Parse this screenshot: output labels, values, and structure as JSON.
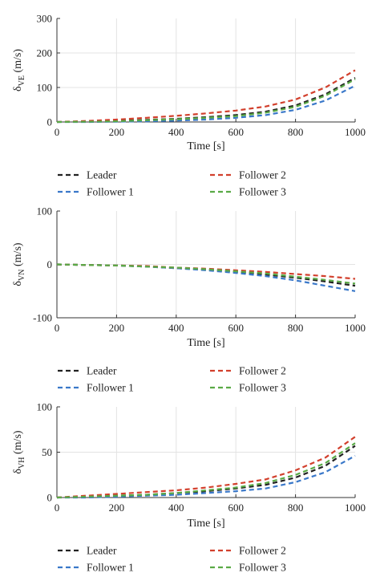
{
  "chart_data": [
    {
      "type": "line",
      "ylabel": {
        "main": "δ",
        "sub": "VE",
        "unit": "(m/s)"
      },
      "xlabel": "Time [s]",
      "xlim": [
        0,
        1000
      ],
      "ylim": [
        0,
        300
      ],
      "xticks": [
        "0",
        "200",
        "400",
        "600",
        "800",
        "1000"
      ],
      "yticks": [
        "0",
        "100",
        "200",
        "300"
      ],
      "grid": true,
      "legend_placement": "bottom",
      "x": [
        0,
        100,
        200,
        300,
        400,
        500,
        600,
        700,
        800,
        900,
        1000
      ],
      "series": [
        {
          "name": "Leader",
          "color": "#222222",
          "values": [
            0,
            1,
            3,
            6,
            9,
            14,
            20,
            30,
            48,
            80,
            128
          ]
        },
        {
          "name": "Follower 1",
          "color": "#3a78c9",
          "values": [
            0,
            0,
            1,
            2,
            4,
            7,
            12,
            20,
            35,
            62,
            105
          ]
        },
        {
          "name": "Follower 2",
          "color": "#d2402d",
          "values": [
            0,
            3,
            7,
            12,
            18,
            25,
            33,
            45,
            65,
            100,
            150
          ]
        },
        {
          "name": "Follower 3",
          "color": "#5aaa46",
          "values": [
            0,
            1,
            2,
            5,
            8,
            12,
            17,
            27,
            44,
            76,
            124
          ]
        }
      ]
    },
    {
      "type": "line",
      "ylabel": {
        "main": "δ",
        "sub": "VN",
        "unit": "(m/s)"
      },
      "xlabel": "Time [s]",
      "xlim": [
        0,
        1000
      ],
      "ylim": [
        -100,
        100
      ],
      "xticks": [
        "0",
        "200",
        "400",
        "600",
        "800",
        "1000"
      ],
      "yticks": [
        "-100",
        "0",
        "100"
      ],
      "grid": true,
      "legend_placement": "bottom",
      "x": [
        0,
        100,
        200,
        300,
        400,
        500,
        600,
        700,
        800,
        900,
        1000
      ],
      "series": [
        {
          "name": "Leader",
          "color": "#222222",
          "values": [
            0,
            -1,
            -2,
            -4,
            -7,
            -10,
            -14,
            -19,
            -25,
            -32,
            -40
          ]
        },
        {
          "name": "Follower 1",
          "color": "#3a78c9",
          "values": [
            0,
            -1,
            -2,
            -4,
            -7,
            -11,
            -16,
            -22,
            -30,
            -40,
            -50
          ]
        },
        {
          "name": "Follower 2",
          "color": "#d2402d",
          "values": [
            0,
            -1,
            -2,
            -3,
            -6,
            -8,
            -11,
            -14,
            -18,
            -22,
            -27
          ]
        },
        {
          "name": "Follower 3",
          "color": "#5aaa46",
          "values": [
            0,
            -1,
            -2,
            -4,
            -6,
            -9,
            -13,
            -17,
            -23,
            -29,
            -36
          ]
        }
      ]
    },
    {
      "type": "line",
      "ylabel": {
        "main": "δ",
        "sub": "VH",
        "unit": "(m/s)"
      },
      "xlabel": "Time [s]",
      "xlim": [
        0,
        1000
      ],
      "ylim": [
        0,
        100
      ],
      "xticks": [
        "0",
        "200",
        "400",
        "600",
        "800",
        "1000"
      ],
      "yticks": [
        "0",
        "50",
        "100"
      ],
      "grid": true,
      "legend_placement": "bottom",
      "x": [
        0,
        100,
        200,
        300,
        400,
        500,
        600,
        700,
        800,
        900,
        1000
      ],
      "series": [
        {
          "name": "Leader",
          "color": "#222222",
          "values": [
            0,
            1,
            2,
            3,
            5,
            7,
            10,
            14,
            22,
            35,
            57
          ]
        },
        {
          "name": "Follower 1",
          "color": "#3a78c9",
          "values": [
            0,
            0,
            1,
            2,
            3,
            5,
            7,
            10,
            17,
            28,
            46
          ]
        },
        {
          "name": "Follower 2",
          "color": "#d2402d",
          "values": [
            0,
            2,
            4,
            6,
            8,
            11,
            15,
            20,
            30,
            44,
            67
          ]
        },
        {
          "name": "Follower 3",
          "color": "#5aaa46",
          "values": [
            0,
            1,
            2,
            3,
            5,
            8,
            11,
            16,
            25,
            38,
            60
          ]
        }
      ]
    }
  ]
}
